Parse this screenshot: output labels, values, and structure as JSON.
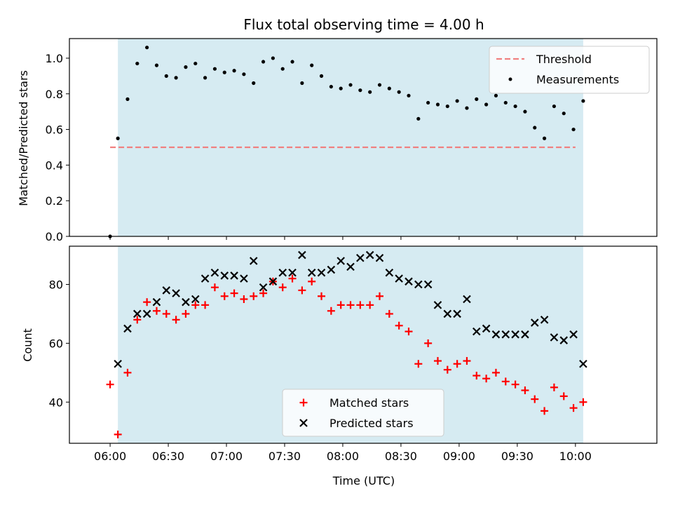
{
  "chart_data": [
    {
      "type": "scatter",
      "title": "Flux total observing time = 4.00 h",
      "ylabel": "Matched/Predicted stars",
      "xlabel": "",
      "ylim": [
        0,
        1.11
      ],
      "yticks": [
        "0.0",
        "0.2",
        "0.4",
        "0.6",
        "0.8",
        "1.0"
      ],
      "x_unit": "minutes after 06:00 UTC",
      "shaded_span": [
        "06:04",
        "10:04"
      ],
      "shade_color": "#add8e6",
      "grid": false,
      "legend": "top-right",
      "threshold": {
        "name": "Threshold",
        "value": 0.5,
        "x_range": [
          "06:00",
          "10:00"
        ],
        "color": "#f08080",
        "style": "dashed"
      },
      "series": [
        {
          "name": "Measurements",
          "color": "#000000",
          "marker": "dot",
          "points": [
            [
              "06:00",
              0.0
            ],
            [
              "06:04",
              0.55
            ],
            [
              "06:09",
              0.77
            ],
            [
              "06:14",
              0.97
            ],
            [
              "06:19",
              1.06
            ],
            [
              "06:24",
              0.96
            ],
            [
              "06:29",
              0.9
            ],
            [
              "06:34",
              0.89
            ],
            [
              "06:39",
              0.95
            ],
            [
              "06:44",
              0.97
            ],
            [
              "06:49",
              0.89
            ],
            [
              "06:54",
              0.94
            ],
            [
              "06:59",
              0.92
            ],
            [
              "07:04",
              0.93
            ],
            [
              "07:09",
              0.91
            ],
            [
              "07:14",
              0.86
            ],
            [
              "07:19",
              0.98
            ],
            [
              "07:24",
              1.0
            ],
            [
              "07:29",
              0.94
            ],
            [
              "07:34",
              0.98
            ],
            [
              "07:39",
              0.86
            ],
            [
              "07:44",
              0.96
            ],
            [
              "07:49",
              0.9
            ],
            [
              "07:54",
              0.84
            ],
            [
              "07:59",
              0.83
            ],
            [
              "08:04",
              0.85
            ],
            [
              "08:09",
              0.82
            ],
            [
              "08:14",
              0.81
            ],
            [
              "08:19",
              0.85
            ],
            [
              "08:24",
              0.83
            ],
            [
              "08:29",
              0.81
            ],
            [
              "08:34",
              0.79
            ],
            [
              "08:39",
              0.66
            ],
            [
              "08:44",
              0.75
            ],
            [
              "08:49",
              0.74
            ],
            [
              "08:54",
              0.73
            ],
            [
              "08:59",
              0.76
            ],
            [
              "09:04",
              0.72
            ],
            [
              "09:09",
              0.77
            ],
            [
              "09:14",
              0.74
            ],
            [
              "09:19",
              0.79
            ],
            [
              "09:24",
              0.75
            ],
            [
              "09:29",
              0.73
            ],
            [
              "09:34",
              0.7
            ],
            [
              "09:39",
              0.61
            ],
            [
              "09:44",
              0.55
            ],
            [
              "09:49",
              0.73
            ],
            [
              "09:54",
              0.69
            ],
            [
              "09:59",
              0.6
            ],
            [
              "10:04",
              0.76
            ]
          ]
        }
      ]
    },
    {
      "type": "scatter",
      "title": "",
      "ylabel": "Count",
      "xlabel": "Time (UTC)",
      "ylim": [
        26,
        93
      ],
      "yticks": [
        "40",
        "60",
        "80"
      ],
      "xticks": [
        "06:00",
        "06:30",
        "07:00",
        "07:30",
        "08:00",
        "08:30",
        "09:00",
        "09:30",
        "10:00"
      ],
      "x_unit": "minutes after 06:00 UTC",
      "shaded_span": [
        "06:04",
        "10:04"
      ],
      "shade_color": "#add8e6",
      "grid": false,
      "legend": "lower-center",
      "series": [
        {
          "name": "Matched stars",
          "color": "#ff0000",
          "marker": "plus",
          "points": [
            [
              "06:00",
              46
            ],
            [
              "06:04",
              29
            ],
            [
              "06:09",
              50
            ],
            [
              "06:14",
              68
            ],
            [
              "06:19",
              74
            ],
            [
              "06:24",
              71
            ],
            [
              "06:29",
              70
            ],
            [
              "06:34",
              68
            ],
            [
              "06:39",
              70
            ],
            [
              "06:44",
              73
            ],
            [
              "06:49",
              73
            ],
            [
              "06:54",
              79
            ],
            [
              "06:59",
              76
            ],
            [
              "07:04",
              77
            ],
            [
              "07:09",
              75
            ],
            [
              "07:14",
              76
            ],
            [
              "07:19",
              77
            ],
            [
              "07:24",
              81
            ],
            [
              "07:29",
              79
            ],
            [
              "07:34",
              82
            ],
            [
              "07:39",
              78
            ],
            [
              "07:44",
              81
            ],
            [
              "07:49",
              76
            ],
            [
              "07:54",
              71
            ],
            [
              "07:59",
              73
            ],
            [
              "08:04",
              73
            ],
            [
              "08:09",
              73
            ],
            [
              "08:14",
              73
            ],
            [
              "08:19",
              76
            ],
            [
              "08:24",
              70
            ],
            [
              "08:29",
              66
            ],
            [
              "08:34",
              64
            ],
            [
              "08:39",
              53
            ],
            [
              "08:44",
              60
            ],
            [
              "08:49",
              54
            ],
            [
              "08:54",
              51
            ],
            [
              "08:59",
              53
            ],
            [
              "09:04",
              54
            ],
            [
              "09:09",
              49
            ],
            [
              "09:14",
              48
            ],
            [
              "09:19",
              50
            ],
            [
              "09:24",
              47
            ],
            [
              "09:29",
              46
            ],
            [
              "09:34",
              44
            ],
            [
              "09:39",
              41
            ],
            [
              "09:44",
              37
            ],
            [
              "09:49",
              45
            ],
            [
              "09:54",
              42
            ],
            [
              "09:59",
              38
            ],
            [
              "10:04",
              40
            ]
          ]
        },
        {
          "name": "Predicted stars",
          "color": "#000000",
          "marker": "x",
          "points": [
            [
              "06:04",
              53
            ],
            [
              "06:09",
              65
            ],
            [
              "06:14",
              70
            ],
            [
              "06:19",
              70
            ],
            [
              "06:24",
              74
            ],
            [
              "06:29",
              78
            ],
            [
              "06:34",
              77
            ],
            [
              "06:39",
              74
            ],
            [
              "06:44",
              75
            ],
            [
              "06:49",
              82
            ],
            [
              "06:54",
              84
            ],
            [
              "06:59",
              83
            ],
            [
              "07:04",
              83
            ],
            [
              "07:09",
              82
            ],
            [
              "07:14",
              88
            ],
            [
              "07:19",
              79
            ],
            [
              "07:24",
              81
            ],
            [
              "07:29",
              84
            ],
            [
              "07:34",
              84
            ],
            [
              "07:39",
              90
            ],
            [
              "07:44",
              84
            ],
            [
              "07:49",
              84
            ],
            [
              "07:54",
              85
            ],
            [
              "07:59",
              88
            ],
            [
              "08:04",
              86
            ],
            [
              "08:09",
              89
            ],
            [
              "08:14",
              90
            ],
            [
              "08:19",
              89
            ],
            [
              "08:24",
              84
            ],
            [
              "08:29",
              82
            ],
            [
              "08:34",
              81
            ],
            [
              "08:39",
              80
            ],
            [
              "08:44",
              80
            ],
            [
              "08:49",
              73
            ],
            [
              "08:54",
              70
            ],
            [
              "08:59",
              70
            ],
            [
              "09:04",
              75
            ],
            [
              "09:09",
              64
            ],
            [
              "09:14",
              65
            ],
            [
              "09:19",
              63
            ],
            [
              "09:24",
              63
            ],
            [
              "09:29",
              63
            ],
            [
              "09:34",
              63
            ],
            [
              "09:39",
              67
            ],
            [
              "09:44",
              68
            ],
            [
              "09:49",
              62
            ],
            [
              "09:54",
              61
            ],
            [
              "09:59",
              63
            ],
            [
              "10:04",
              53
            ]
          ]
        }
      ]
    }
  ]
}
